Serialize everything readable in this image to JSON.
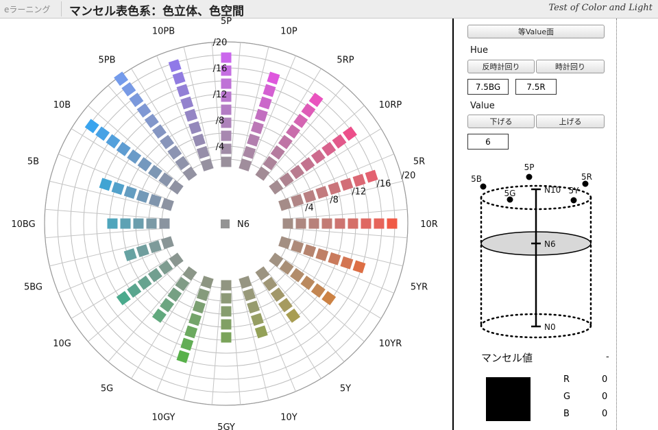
{
  "header": {
    "brand": "eラーニング",
    "title": "マンセル表色系：色立体、色空間",
    "tagline": "Test of Color and Light"
  },
  "chart_data": {
    "type": "polar-swatch",
    "center_label": "N6",
    "center_color": "#949494",
    "chroma_labels": [
      "/4",
      "/8",
      "/12",
      "/16",
      "/20"
    ],
    "hues": [
      {
        "name": "5P",
        "colors": [
          "#9a909c",
          "#a08ca6",
          "#a787b0",
          "#ad82ba",
          "#b37cc4",
          "#b977ce",
          "#bf72d7",
          "#c56ee2",
          "#ca67ec"
        ]
      },
      {
        "name": "10P",
        "colors": [
          "#a08d9c",
          "#a987a4",
          "#b27fae",
          "#bb78b6",
          "#c26fc0",
          "#cb67ca",
          "#d460d2",
          "#de57dd"
        ]
      },
      {
        "name": "5RP",
        "colors": [
          "#a28b95",
          "#ac849a",
          "#b57c9f",
          "#bf74a5",
          "#c96cab",
          "#d465b2",
          "#de5bb7",
          "#e953be"
        ]
      },
      {
        "name": "10RP",
        "colors": [
          "#a48c91",
          "#ae8390",
          "#b97b8f",
          "#c3728e",
          "#cd6b8d",
          "#d8628c",
          "#e2598b",
          "#ec4f8a"
        ]
      },
      {
        "name": "5R",
        "colors": [
          "#a58c88",
          "#b18686",
          "#b98082",
          "#c27b7e",
          "#ca757b",
          "#d26e77",
          "#db6874",
          "#e36170"
        ]
      },
      {
        "name": "10R",
        "colors": [
          "#a38d85",
          "#ae8780",
          "#b8817a",
          "#c37b74",
          "#cd7470",
          "#d56f68",
          "#df6862",
          "#e6645a",
          "#f05a46"
        ]
      },
      {
        "name": "5YR",
        "colors": [
          "#a38f82",
          "#ad8a79",
          "#b6846f",
          "#bf7f66",
          "#c97a5c",
          "#d37552",
          "#dd6e44"
        ]
      },
      {
        "name": "10YR",
        "colors": [
          "#a19282",
          "#a98f76",
          "#b28c6a",
          "#ba895e",
          "#c38652",
          "#cc8244"
        ]
      },
      {
        "name": "5Y",
        "colors": [
          "#9c9481",
          "#9f9676",
          "#a2986a",
          "#a69b5f",
          "#a89d52"
        ]
      },
      {
        "name": "10Y",
        "colors": [
          "#969582",
          "#98997a",
          "#979c6f",
          "#969e63",
          "#94a158"
        ]
      },
      {
        "name": "5GY",
        "colors": [
          "#919581",
          "#8c9977",
          "#869d6e",
          "#81a065",
          "#7aa35a"
        ]
      },
      {
        "name": "10GY",
        "colors": [
          "#8d9582",
          "#859b7c",
          "#7ca072",
          "#74a46a",
          "#6ca960",
          "#62ad55",
          "#58b14a"
        ]
      },
      {
        "name": "5G",
        "colors": [
          "#8b9688",
          "#809b86",
          "#76a083",
          "#6ca580",
          "#62a97e"
        ]
      },
      {
        "name": "10G",
        "colors": [
          "#8a9690",
          "#7e9c90",
          "#729f90",
          "#66a38f",
          "#59a58e",
          "#4aaa8c"
        ]
      },
      {
        "name": "5BG",
        "colors": [
          "#899596",
          "#7e9b9a",
          "#709e9e",
          "#66a2a2"
        ]
      },
      {
        "name": "10BG",
        "colors": [
          "#8a94a0",
          "#7b9aa6",
          "#6b9ead",
          "#5ea2b4",
          "#4fa5bc"
        ]
      },
      {
        "name": "5B",
        "colors": [
          "#8c93a2",
          "#8095ad",
          "#7299b8",
          "#649dc1",
          "#52a1cb",
          "#41a4d3"
        ]
      },
      {
        "name": "10B",
        "colors": [
          "#8f92a2",
          "#8894ab",
          "#7d97b4",
          "#7498be",
          "#6a9bc8",
          "#5f9dd2",
          "#53a0dc",
          "#47a2e5",
          "#3aa4ee"
        ]
      },
      {
        "name": "5PB",
        "colors": [
          "#9392a2",
          "#8f93aa",
          "#8c94b2",
          "#8895ba",
          "#8596c2",
          "#8297cb",
          "#7f98d4",
          "#7b99dc",
          "#789ae5",
          "#749beb"
        ]
      },
      {
        "name": "10PB",
        "colors": [
          "#9691a0",
          "#968ea9",
          "#958bb2",
          "#9488bb",
          "#9485c4",
          "#9382cd",
          "#927fd6",
          "#917ce0",
          "#9079e8"
        ]
      }
    ]
  },
  "panel": {
    "equal_value_button": "等Value面",
    "hue_label": "Hue",
    "ccw_button": "反時計回り",
    "cw_button": "時計回り",
    "hue_box_1": "7.5BG",
    "hue_box_2": "7.5R",
    "value_label": "Value",
    "down_button": "下げる",
    "up_button": "上げる",
    "value_box": "6",
    "cylinder_labels": {
      "h5b": "5B",
      "h5p": "5P",
      "h5r": "5R",
      "h5g": "5G",
      "h5y": "5Y",
      "n10": "N10",
      "n6": "N6",
      "n0": "N0"
    },
    "munsell_label": "マンセル値",
    "munsell_value": "-",
    "swatch_color": "#000000",
    "rgb": [
      {
        "k": "R",
        "v": "0"
      },
      {
        "k": "G",
        "v": "0"
      },
      {
        "k": "B",
        "v": "0"
      }
    ]
  }
}
